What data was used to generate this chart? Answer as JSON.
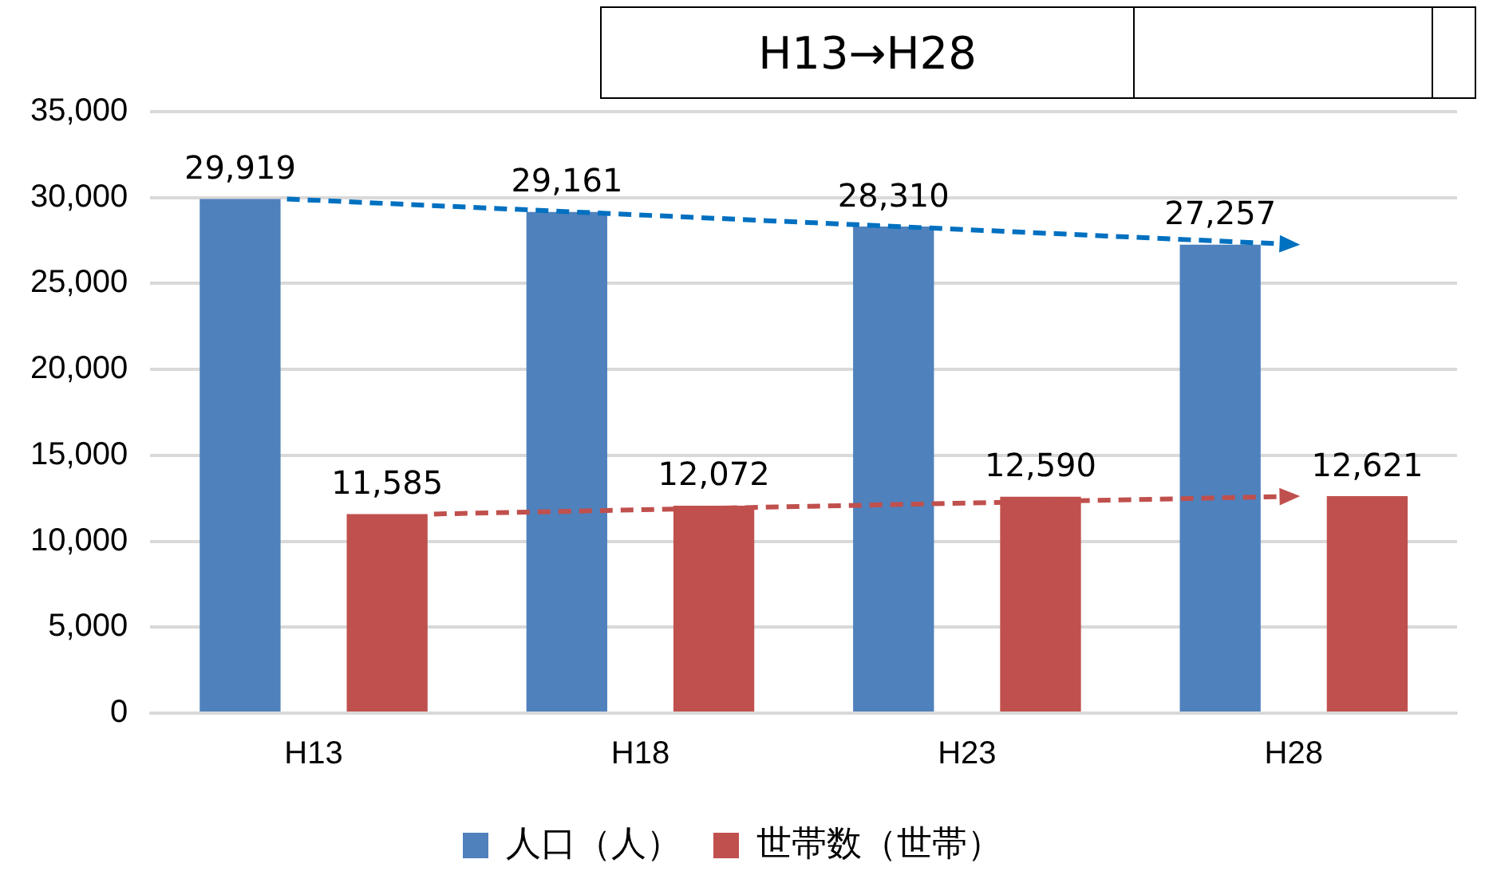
{
  "chart_data": {
    "type": "bar",
    "categories": [
      "H13",
      "H18",
      "H23",
      "H28"
    ],
    "series": [
      {
        "name": "人口（人）",
        "color": "#4f81bd",
        "values": [
          29919,
          29161,
          28310,
          27257
        ],
        "value_labels": [
          "29,919",
          "29,161",
          "28,310",
          "27,257"
        ]
      },
      {
        "name": "世帯数（世帯）",
        "color": "#c0504d",
        "values": [
          11585,
          12072,
          12590,
          12621
        ],
        "value_labels": [
          "11,585",
          "12,072",
          "12,590",
          "12,621"
        ]
      }
    ],
    "ylim": [
      0,
      35000
    ],
    "yticks": [
      {
        "value": 0,
        "label": "0"
      },
      {
        "value": 5000,
        "label": "5,000"
      },
      {
        "value": 10000,
        "label": "10,000"
      },
      {
        "value": 15000,
        "label": "15,000"
      },
      {
        "value": 20000,
        "label": "20,000"
      },
      {
        "value": 25000,
        "label": "25,000"
      },
      {
        "value": 30000,
        "label": "30,000"
      },
      {
        "value": 35000,
        "label": "35,000"
      }
    ],
    "grid": "y",
    "legend": "bottom",
    "annotations": [
      "H13→H28"
    ]
  }
}
